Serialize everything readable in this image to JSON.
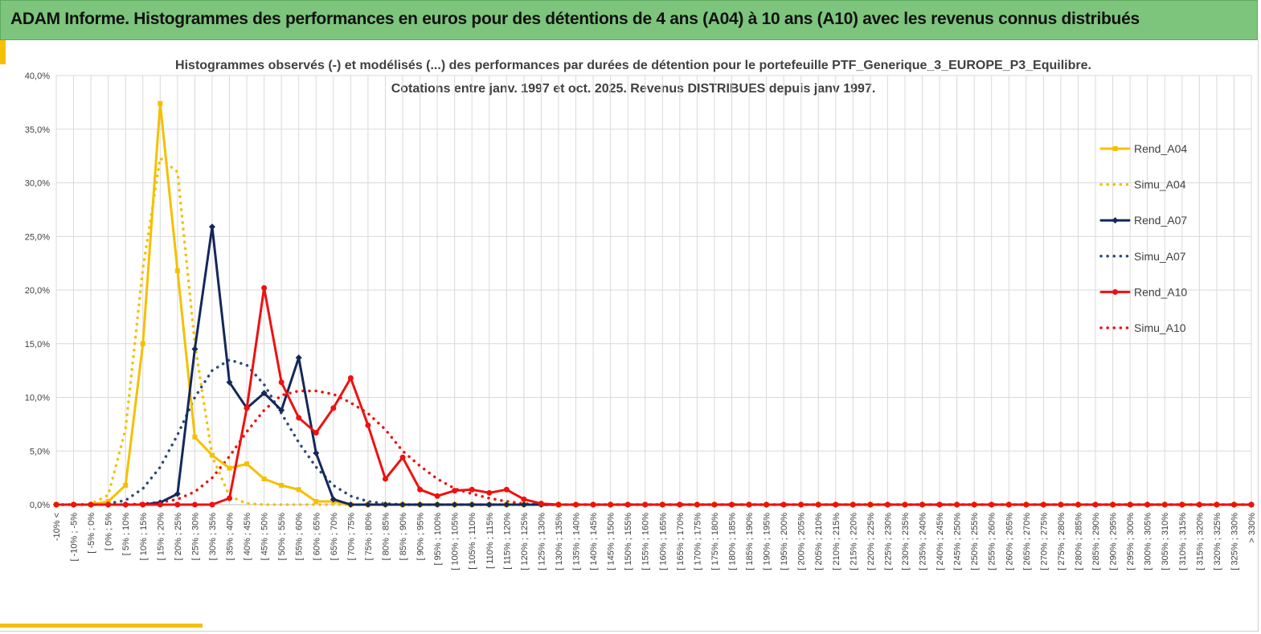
{
  "header": {
    "title": "ADAM Informe. Histogrammes des performances en euros pour des détentions de 4 ans (A04) à 10 ans (A10) avec les revenus connus distribués"
  },
  "colors": {
    "banner": "#7dc47d",
    "A04": "#f5c000",
    "A07": "#14285a",
    "A10": "#ee1111",
    "sim_A07": "#2e4a78",
    "grid": "#d9d9d9"
  },
  "chart_data": {
    "type": "line",
    "title": [
      "Histogrammes observés (-) et modélisés (...) des performances par durées de détention pour le portefeuille PTF_Generique_3_EUROPE_P3_Equilibre.",
      "Cotations entre janv. 1997 et oct. 2025. Revenus DISTRIBUES depuis janv 1997."
    ],
    "xlabel": "",
    "ylabel": "",
    "ylim": [
      0,
      40
    ],
    "y_ticks": [
      "0,0%",
      "5,0%",
      "10,0%",
      "15,0%",
      "20,0%",
      "25,0%",
      "30,0%",
      "35,0%",
      "40,0%"
    ],
    "grid": true,
    "legend_position": "right",
    "categories": [
      "-10% <",
      "[ -10% ; -5%",
      "[ -5% ; 0%",
      "[ 0% ; 5%",
      "[ 5% ; 10%",
      "[ 10% ; 15%",
      "[ 15% ; 20%",
      "[ 20% ; 25%",
      "[ 25% ; 30%",
      "[ 30% ; 35%",
      "[ 35% ; 40%",
      "[ 40% ; 45%",
      "[ 45% ; 50%",
      "[ 50% ; 55%",
      "[ 55% ; 60%",
      "[ 60% ; 65%",
      "[ 65% ; 70%",
      "[ 70% ; 75%",
      "[ 75% ; 80%",
      "[ 80% ; 85%",
      "[ 85% ; 90%",
      "[ 90% ; 95%",
      "[ 95% ; 100%",
      "[ 100% ; 105%",
      "[ 105% ; 110%",
      "[ 110% ; 115%",
      "[ 115% ; 120%",
      "[ 120% ; 125%",
      "[ 125% ; 130%",
      "[ 130% ; 135%",
      "[ 135% ; 140%",
      "[ 140% ; 145%",
      "[ 145% ; 150%",
      "[ 150% ; 155%",
      "[ 155% ; 160%",
      "[ 160% ; 165%",
      "[ 165% ; 170%",
      "[ 170% ; 175%",
      "[ 175% ; 180%",
      "[ 180% ; 185%",
      "[ 185% ; 190%",
      "[ 190% ; 195%",
      "[ 195% ; 200%",
      "[ 200% ; 205%",
      "[ 205% ; 210%",
      "[ 210% ; 215%",
      "[ 215% ; 220%",
      "[ 220% ; 225%",
      "[ 225% ; 230%",
      "[ 230% ; 235%",
      "[ 235% ; 240%",
      "[ 240% ; 245%",
      "[ 245% ; 250%",
      "[ 250% ; 255%",
      "[ 255% ; 260%",
      "[ 260% ; 265%",
      "[ 265% ; 270%",
      "[ 270% ; 275%",
      "[ 275% ; 280%",
      "[ 280% ; 285%",
      "[ 285% ; 290%",
      "[ 290% ; 295%",
      "[ 295% ; 300%",
      "[ 300% ; 305%",
      "[ 305% ; 310%",
      "[ 310% ; 315%",
      "[ 315% ; 320%",
      "[ 320% ; 325%",
      "[ 325% ; 330%",
      "> 330%"
    ],
    "series": [
      {
        "name": "Rend_A04",
        "style": "solid",
        "marker": "square",
        "color": "#f5c000",
        "values": [
          0,
          0,
          0,
          0.3,
          1.8,
          15.0,
          37.4,
          21.8,
          6.3,
          4.6,
          3.4,
          3.8,
          2.4,
          1.8,
          1.4,
          0.3,
          0.3,
          0,
          0,
          0,
          0,
          0,
          0,
          0,
          0,
          0,
          0,
          0,
          0,
          0,
          0,
          0,
          0,
          0,
          0,
          0,
          0,
          0,
          0,
          0,
          0,
          0,
          0,
          0,
          0,
          0,
          0,
          0,
          0,
          0,
          0,
          0,
          0,
          0,
          0,
          0,
          0,
          0,
          0,
          0,
          0,
          0,
          0,
          0,
          0,
          0,
          0,
          0,
          0,
          0
        ]
      },
      {
        "name": "Simu_A04",
        "style": "dotted",
        "color": "#f5c000",
        "values": [
          0,
          0,
          0.05,
          0.9,
          7.0,
          22.0,
          32.3,
          31.0,
          15.0,
          4.5,
          0.8,
          0.1,
          0,
          0,
          0,
          0,
          0,
          0,
          0,
          0,
          0,
          0,
          0,
          0,
          0,
          0,
          0,
          0,
          0,
          0,
          0,
          0,
          0,
          0,
          0,
          0,
          0,
          0,
          0,
          0,
          0,
          0,
          0,
          0,
          0,
          0,
          0,
          0,
          0,
          0,
          0,
          0,
          0,
          0,
          0,
          0,
          0,
          0,
          0,
          0,
          0,
          0,
          0,
          0,
          0,
          0,
          0,
          0,
          0,
          0
        ]
      },
      {
        "name": "Rend_A07",
        "style": "solid",
        "marker": "diamond",
        "color": "#14285a",
        "values": [
          0,
          0,
          0,
          0,
          0,
          0,
          0.2,
          1.0,
          14.5,
          25.9,
          11.4,
          9.0,
          10.4,
          8.8,
          13.7,
          4.8,
          0.5,
          0,
          0,
          0,
          0,
          0,
          0,
          0,
          0,
          0,
          0,
          0,
          0,
          0,
          0,
          0,
          0,
          0,
          0,
          0,
          0,
          0,
          0,
          0,
          0,
          0,
          0,
          0,
          0,
          0,
          0,
          0,
          0,
          0,
          0,
          0,
          0,
          0,
          0,
          0,
          0,
          0,
          0,
          0,
          0,
          0,
          0,
          0,
          0,
          0,
          0,
          0,
          0,
          0
        ]
      },
      {
        "name": "Simu_A07",
        "style": "dotted",
        "color": "#2e4a78",
        "values": [
          0,
          0,
          0,
          0.1,
          0.4,
          1.5,
          3.5,
          6.5,
          10.0,
          12.5,
          13.5,
          13.0,
          11.2,
          8.5,
          5.8,
          3.5,
          1.8,
          0.8,
          0.3,
          0.1,
          0,
          0,
          0,
          0,
          0,
          0,
          0,
          0,
          0,
          0,
          0,
          0,
          0,
          0,
          0,
          0,
          0,
          0,
          0,
          0,
          0,
          0,
          0,
          0,
          0,
          0,
          0,
          0,
          0,
          0,
          0,
          0,
          0,
          0,
          0,
          0,
          0,
          0,
          0,
          0,
          0,
          0,
          0,
          0,
          0,
          0,
          0,
          0,
          0,
          0
        ]
      },
      {
        "name": "Rend_A10",
        "style": "solid",
        "marker": "circle",
        "color": "#ee1111",
        "values": [
          0,
          0,
          0,
          0,
          0,
          0,
          0,
          0,
          0,
          0,
          0.6,
          9.0,
          20.2,
          11.4,
          8.1,
          6.7,
          9.0,
          11.8,
          7.4,
          2.4,
          4.4,
          1.4,
          0.8,
          1.3,
          1.4,
          1.1,
          1.4,
          0.5,
          0.1,
          0,
          0,
          0,
          0,
          0,
          0,
          0,
          0,
          0,
          0,
          0,
          0,
          0,
          0,
          0,
          0,
          0,
          0,
          0,
          0,
          0,
          0,
          0,
          0,
          0,
          0,
          0,
          0,
          0,
          0,
          0,
          0,
          0,
          0,
          0,
          0,
          0,
          0,
          0,
          0,
          0
        ]
      },
      {
        "name": "Simu_A10",
        "style": "dotted",
        "color": "#ee1111",
        "values": [
          0,
          0,
          0,
          0,
          0,
          0.1,
          0.2,
          0.5,
          1.2,
          2.5,
          4.5,
          6.8,
          8.8,
          10.2,
          10.6,
          10.6,
          10.3,
          9.5,
          8.5,
          7.0,
          5.0,
          3.6,
          2.4,
          1.5,
          1.0,
          0.6,
          0.3,
          0.1,
          0,
          0,
          0,
          0,
          0,
          0,
          0,
          0,
          0,
          0,
          0,
          0,
          0,
          0,
          0,
          0,
          0,
          0,
          0,
          0,
          0,
          0,
          0,
          0,
          0,
          0,
          0,
          0,
          0,
          0,
          0,
          0,
          0,
          0,
          0,
          0,
          0,
          0,
          0,
          0,
          0,
          0
        ]
      }
    ]
  }
}
